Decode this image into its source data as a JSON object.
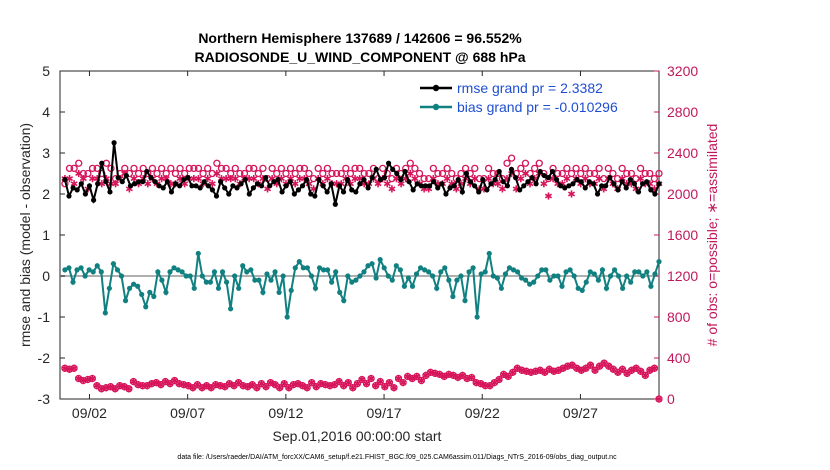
{
  "chart_data": {
    "type": "line",
    "title": "Northern Hemisphere 137689 / 142606 = 96.552%",
    "subtitle": "RADIOSONDE_U_WIND_COMPONENT @ 688 hPa",
    "xlabel": "Sep.01,2016 00:00:00 start",
    "ylabel": "rmse and bias (model - observation)",
    "ylabel_right": "# of obs: o=possible; ∗=assimilated",
    "footer": "data file: /Users/raeder/DAI/ATM_forcXX/CAM6_setup/f.e21.FHIST_BGC.f09_025.CAM6assim.011/Diags_NTrS_2016-09/obs_diag_output.nc",
    "x_tick_labels": [
      "09/02",
      "09/07",
      "09/12",
      "09/17",
      "09/22",
      "09/27"
    ],
    "x_tick_days": [
      2,
      7,
      12,
      17,
      22,
      27
    ],
    "xlim": [
      0.5,
      31
    ],
    "ylim": [
      -3,
      5
    ],
    "y_ticks": [
      -3,
      -2,
      -1,
      0,
      1,
      2,
      3,
      4,
      5
    ],
    "ylim_right": [
      0,
      3200
    ],
    "y_ticks_right": [
      0,
      400,
      800,
      1200,
      1600,
      2000,
      2400,
      2800,
      3200
    ],
    "grid": false,
    "legend_position": "top-right",
    "colors": {
      "rmse": "#000000",
      "bias": "#118080",
      "obs": "#d6155b",
      "zero_line": "#b0b0b0"
    },
    "legend": [
      {
        "label": "rmse grand pr = 2.3382",
        "color": "#000000"
      },
      {
        "label": "bias grand pr = -0.010296",
        "color": "#118080"
      }
    ],
    "series": [
      {
        "name": "rmse grand pr = 2.3382",
        "axis": "left",
        "values": [
          2.35,
          1.95,
          2.15,
          2.1,
          2.25,
          2.0,
          2.2,
          1.85,
          2.25,
          2.75,
          2.3,
          2.05,
          3.25,
          2.4,
          2.3,
          2.45,
          2.2,
          2.25,
          2.3,
          2.3,
          2.55,
          2.4,
          2.3,
          2.2,
          2.15,
          2.3,
          2.05,
          2.25,
          2.2,
          2.35,
          2.4,
          2.2,
          2.2,
          2.15,
          2.3,
          2.2,
          2.1,
          1.95,
          2.3,
          2.15,
          2.0,
          2.2,
          2.15,
          2.25,
          2.35,
          2.0,
          2.15,
          2.25,
          2.2,
          2.4,
          2.2,
          2.3,
          2.35,
          2.05,
          2.2,
          2.3,
          2.0,
          2.1,
          2.2,
          2.35,
          2.0,
          1.95,
          2.35,
          2.2,
          2.05,
          2.25,
          1.75,
          2.2,
          2.05,
          2.35,
          2.1,
          2.05,
          2.25,
          2.35,
          2.15,
          2.4,
          2.6,
          2.35,
          2.4,
          2.75,
          2.6,
          2.5,
          2.35,
          2.55,
          2.3,
          2.1,
          2.25,
          2.2,
          2.2,
          2.2,
          2.3,
          2.15,
          2.25,
          2.0,
          2.15,
          2.2,
          2.35,
          2.05,
          2.5,
          2.3,
          2.2,
          2.05,
          2.35,
          2.1,
          2.25,
          2.35,
          2.55,
          2.3,
          2.2,
          2.6,
          2.4,
          2.1,
          2.2,
          2.3,
          2.4,
          2.25,
          2.55,
          2.45,
          2.4,
          2.55,
          2.35,
          2.2,
          2.15,
          2.2,
          2.25,
          2.35,
          2.3,
          2.15,
          2.3,
          2.25,
          2.0,
          2.2,
          2.2,
          2.4,
          2.25,
          2.1,
          2.3,
          2.15,
          2.35,
          2.25,
          2.05,
          2.25,
          2.3,
          2.1,
          2.0,
          2.25
        ]
      },
      {
        "name": "bias grand pr = -0.010296",
        "axis": "left",
        "values": [
          0.15,
          0.2,
          -0.15,
          0.15,
          0.2,
          0.0,
          0.15,
          0.1,
          0.25,
          0.1,
          -0.9,
          -0.3,
          0.3,
          0.15,
          0.0,
          -0.6,
          -0.3,
          -0.2,
          -0.25,
          -0.45,
          -0.75,
          -0.4,
          -0.5,
          0.1,
          -0.1,
          -0.4,
          0.1,
          0.2,
          0.15,
          0.1,
          0.0,
          0.0,
          -0.3,
          0.55,
          0.0,
          -0.15,
          -0.15,
          0.1,
          -0.3,
          0.1,
          -0.15,
          -0.8,
          0.0,
          -0.3,
          0.25,
          0.1,
          0.15,
          -0.1,
          -0.1,
          -0.4,
          0.05,
          -0.1,
          0.1,
          -0.4,
          0.0,
          -1.0,
          -0.35,
          0.2,
          0.35,
          0.2,
          0.2,
          0.0,
          -0.3,
          0.2,
          0.15,
          0.15,
          -0.15,
          0.1,
          -0.4,
          -0.6,
          0.0,
          -0.15,
          -0.1,
          0.0,
          0.1,
          0.25,
          0.3,
          -0.05,
          0.4,
          0.2,
          0.0,
          -0.1,
          0.25,
          0.15,
          -0.25,
          -0.05,
          -0.25,
          0.05,
          0.2,
          0.15,
          0.1,
          0.0,
          -0.3,
          0.1,
          0.2,
          -0.1,
          -0.5,
          -0.1,
          0.0,
          -0.6,
          0.1,
          0.2,
          -1.0,
          0.05,
          0.1,
          0.55,
          0.0,
          -0.05,
          -0.3,
          0.05,
          0.2,
          0.15,
          0.1,
          -0.05,
          -0.1,
          -0.2,
          -0.15,
          0.0,
          0.15,
          0.15,
          -0.1,
          0.0,
          0.0,
          -0.25,
          0.1,
          0.15,
          0.0,
          -0.3,
          -0.35,
          -0.15,
          0.1,
          0.05,
          -0.1,
          0.15,
          -0.3,
          0.0,
          0.15,
          0.0,
          -0.3,
          0.0,
          -0.15,
          0.1,
          0.1,
          0.0,
          0.1,
          -0.25,
          0.05,
          0.35
        ]
      },
      {
        "name": "",
        "axis": "right",
        "marker": "o",
        "values": [
          2100,
          2250,
          2250,
          2300,
          2200,
          2200,
          2250,
          2250,
          2200,
          2300,
          2250,
          2150,
          2200,
          2250,
          2200,
          2250,
          2200,
          2250,
          2200,
          2250,
          2200,
          2250,
          2200,
          2250,
          2200,
          2250,
          2200,
          2250,
          2250,
          2250,
          2200,
          2250,
          2200,
          2300,
          2250,
          2250,
          2200,
          2250,
          2200,
          2200,
          2250,
          2250,
          2200,
          2250,
          2150,
          2250,
          2200,
          2250,
          2200,
          2250,
          2200,
          2250,
          2250,
          2200,
          2150,
          2250,
          2200,
          2250,
          2200,
          2200,
          2200,
          2250,
          2200,
          2250,
          2250,
          2200,
          2200,
          2250,
          2150,
          2250,
          2200,
          2150,
          2250,
          2200,
          2250,
          2300,
          2250,
          2200,
          2150,
          2150,
          2250,
          2200,
          2200,
          2250,
          2200,
          2150,
          2200,
          2250,
          2200,
          2250,
          2150,
          2150,
          2250,
          2200,
          2200,
          2150,
          2300,
          2350,
          2200,
          2250,
          2300,
          2200,
          2250,
          2300,
          2200,
          2150,
          2250,
          2200,
          2200,
          2250,
          2200,
          2250,
          2200,
          2250,
          2200,
          2200,
          2250,
          2150,
          2250,
          2200,
          2150,
          2250,
          2200,
          2200,
          2150,
          2250,
          2200,
          2200,
          2150,
          2200
        ]
      },
      {
        "name": "",
        "axis": "right",
        "marker": "*",
        "values": [
          2150,
          2150,
          2100,
          2200,
          2150,
          2050,
          2150,
          2150,
          2100,
          2150,
          2100,
          2100,
          2150,
          2200,
          2050,
          2150,
          2100,
          2150,
          2100,
          2150,
          2100,
          2150,
          2150,
          2100,
          2100,
          2150,
          2100,
          2150,
          2150,
          2150,
          2100,
          2150,
          2100,
          2200,
          2150,
          2150,
          2150,
          2150,
          2100,
          2150,
          2150,
          2150,
          2100,
          2150,
          2050,
          2150,
          2100,
          2150,
          2100,
          2150,
          2100,
          2150,
          2150,
          2100,
          2050,
          2150,
          2100,
          2150,
          2100,
          2100,
          2100,
          2150,
          2100,
          2150,
          2150,
          2100,
          2100,
          2150,
          2100,
          2150,
          2100,
          2050,
          2150,
          2100,
          2150,
          2200,
          2150,
          2100,
          2050,
          2050,
          2150,
          2100,
          2100,
          2150,
          2100,
          2050,
          2100,
          2150,
          2100,
          2150,
          2050,
          2050,
          2150,
          2100,
          2100,
          2050,
          2150,
          2200,
          2050,
          2150,
          2200,
          2100,
          2150,
          2200,
          2100,
          1980,
          2150,
          2100,
          2100,
          2150,
          2000,
          2150,
          2100,
          2150,
          2100,
          2100,
          2150,
          2050,
          2150,
          2100,
          2050,
          2150,
          2100,
          2100,
          2050,
          2150,
          2100,
          2100,
          2050,
          2100
        ]
      },
      {
        "name": "",
        "axis": "right",
        "marker": "o",
        "values": [
          300,
          290,
          300,
          200,
          180,
          190,
          200,
          130,
          100,
          110,
          120,
          100,
          130,
          120,
          100,
          170,
          140,
          130,
          130,
          150,
          160,
          140,
          170,
          150,
          180,
          150,
          140,
          130,
          110,
          140,
          110,
          130,
          110,
          140,
          130,
          120,
          150,
          130,
          160,
          130,
          120,
          140,
          110,
          150,
          120,
          160,
          140,
          110,
          150,
          110,
          140,
          150,
          130,
          110,
          160,
          120,
          150,
          140,
          130,
          140,
          170,
          130,
          160,
          110,
          150,
          190,
          150,
          200,
          130,
          170,
          120,
          160,
          110,
          200,
          160,
          220,
          200,
          220,
          180,
          230,
          260,
          250,
          240,
          220,
          240,
          230,
          210,
          230,
          200,
          210,
          160,
          150,
          130,
          130,
          160,
          190,
          240,
          220,
          260,
          300,
          280,
          270,
          260,
          270,
          280,
          260,
          290,
          270,
          280,
          300,
          320,
          330,
          300,
          280,
          300,
          330,
          280,
          320,
          350,
          320,
          290,
          260,
          290,
          250,
          280,
          300,
          270,
          230,
          280,
          300,
          0
        ]
      },
      {
        "name": "",
        "axis": "right",
        "marker": "*",
        "values": [
          300,
          290,
          300,
          200,
          180,
          190,
          200,
          130,
          100,
          110,
          120,
          100,
          130,
          120,
          100,
          170,
          140,
          130,
          130,
          150,
          160,
          140,
          170,
          150,
          180,
          150,
          140,
          130,
          110,
          140,
          110,
          130,
          110,
          140,
          130,
          120,
          150,
          130,
          160,
          130,
          120,
          140,
          110,
          150,
          120,
          160,
          140,
          110,
          150,
          110,
          140,
          150,
          130,
          110,
          160,
          120,
          150,
          140,
          130,
          140,
          170,
          130,
          160,
          110,
          150,
          190,
          150,
          200,
          130,
          170,
          120,
          160,
          110,
          200,
          160,
          220,
          200,
          220,
          180,
          230,
          260,
          250,
          240,
          220,
          240,
          230,
          210,
          230,
          200,
          210,
          160,
          150,
          130,
          130,
          160,
          190,
          240,
          220,
          260,
          300,
          280,
          270,
          260,
          270,
          280,
          260,
          290,
          270,
          280,
          300,
          320,
          330,
          300,
          280,
          300,
          330,
          280,
          320,
          350,
          320,
          290,
          260,
          290,
          250,
          280,
          300,
          270,
          230,
          280,
          300,
          0
        ]
      }
    ]
  }
}
